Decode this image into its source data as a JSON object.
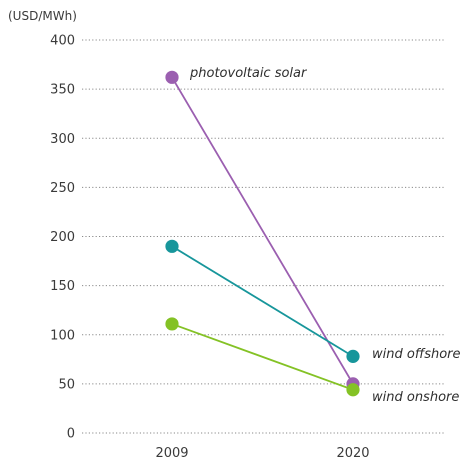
{
  "chart_data": {
    "type": "line",
    "title": "",
    "ylabel": "(USD/MWh)",
    "xlabel": "",
    "categories": [
      "2009",
      "2020"
    ],
    "ylim": [
      0,
      400
    ],
    "yticks": [
      0,
      50,
      100,
      150,
      200,
      250,
      300,
      350,
      400
    ],
    "grid": "horizontal dotted",
    "series": [
      {
        "name": "photovoltaic solar",
        "values": [
          362,
          50
        ],
        "color": "#9b5fb0"
      },
      {
        "name": "wind offshore",
        "values": [
          190,
          78
        ],
        "color": "#17969b"
      },
      {
        "name": "wind onshore",
        "values": [
          111,
          44
        ],
        "color": "#84c225"
      }
    ]
  }
}
